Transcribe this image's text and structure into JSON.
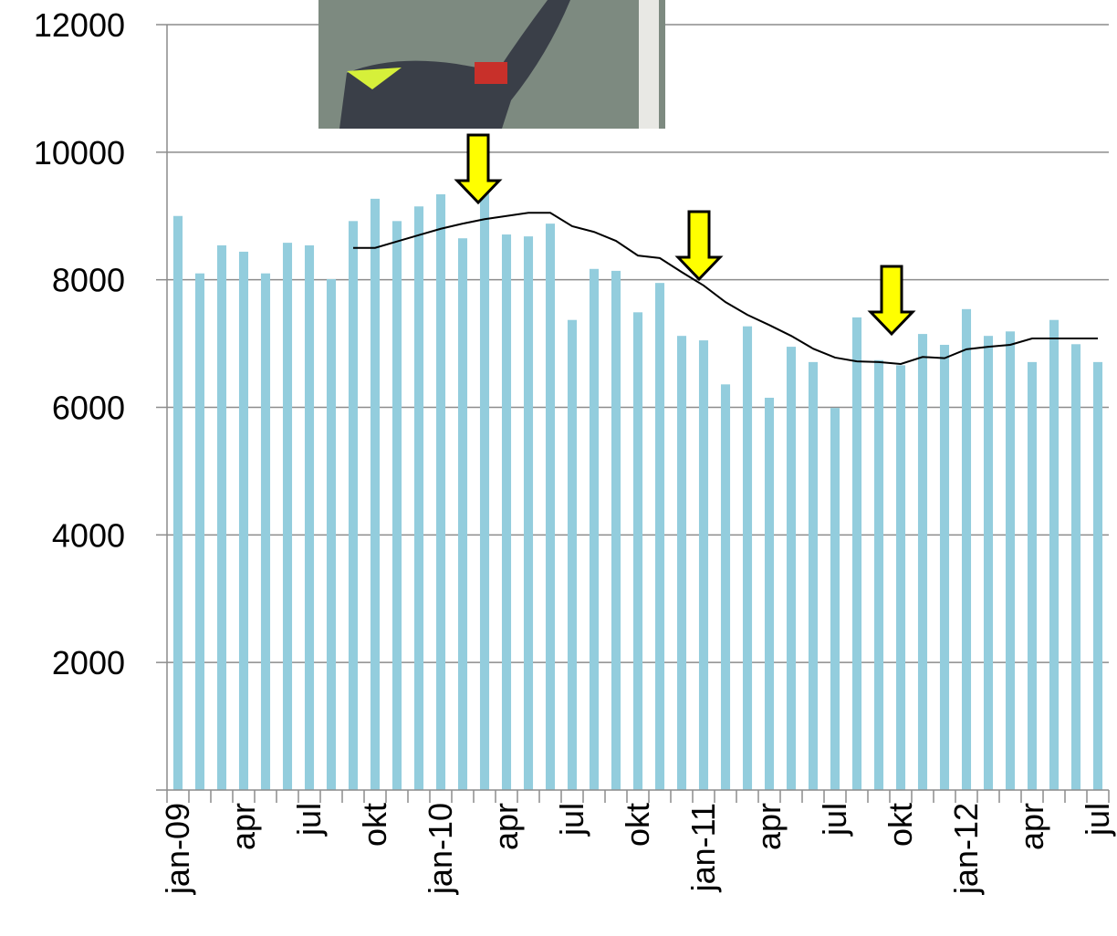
{
  "chart_data": {
    "type": "bar",
    "categories": [
      "jan-09",
      null,
      null,
      "apr",
      null,
      null,
      "jul",
      null,
      null,
      "okt",
      null,
      null,
      "jan-10",
      null,
      null,
      "apr",
      null,
      null,
      "jul",
      null,
      null,
      "okt",
      null,
      null,
      "jan-11",
      null,
      null,
      "apr",
      null,
      null,
      "jul",
      null,
      null,
      "okt",
      null,
      null,
      "jan-12",
      null,
      null,
      "apr",
      null,
      null,
      "jul"
    ],
    "series": [
      {
        "type": "bar",
        "color": "#93cddd",
        "values": [
          9000,
          8100,
          8540,
          8440,
          8100,
          8580,
          8540,
          8010,
          8920,
          9270,
          8920,
          9150,
          9340,
          8650,
          9400,
          8710,
          8680,
          8880,
          7370,
          8170,
          8140,
          7490,
          7950,
          7120,
          7050,
          6360,
          7270,
          6150,
          6950,
          6710,
          5990,
          7410,
          6740,
          6660,
          7150,
          6980,
          7540,
          7120,
          7190,
          6710,
          7370,
          6990,
          6710
        ]
      },
      {
        "type": "line",
        "color": "#000000",
        "values": [
          null,
          null,
          null,
          null,
          null,
          null,
          null,
          null,
          8500,
          8500,
          8600,
          8700,
          8800,
          8880,
          8950,
          9000,
          9050,
          9050,
          8840,
          8750,
          8610,
          8380,
          8340,
          8120,
          7910,
          7650,
          7450,
          7290,
          7120,
          6920,
          6780,
          6720,
          6710,
          6680,
          6790,
          6770,
          6910,
          6950,
          6980,
          7080,
          7080,
          7080,
          7080
        ]
      }
    ],
    "ylim": [
      0,
      12000
    ],
    "yticks": [
      2000,
      4000,
      6000,
      8000,
      10000,
      12000
    ],
    "grid": true
  }
}
